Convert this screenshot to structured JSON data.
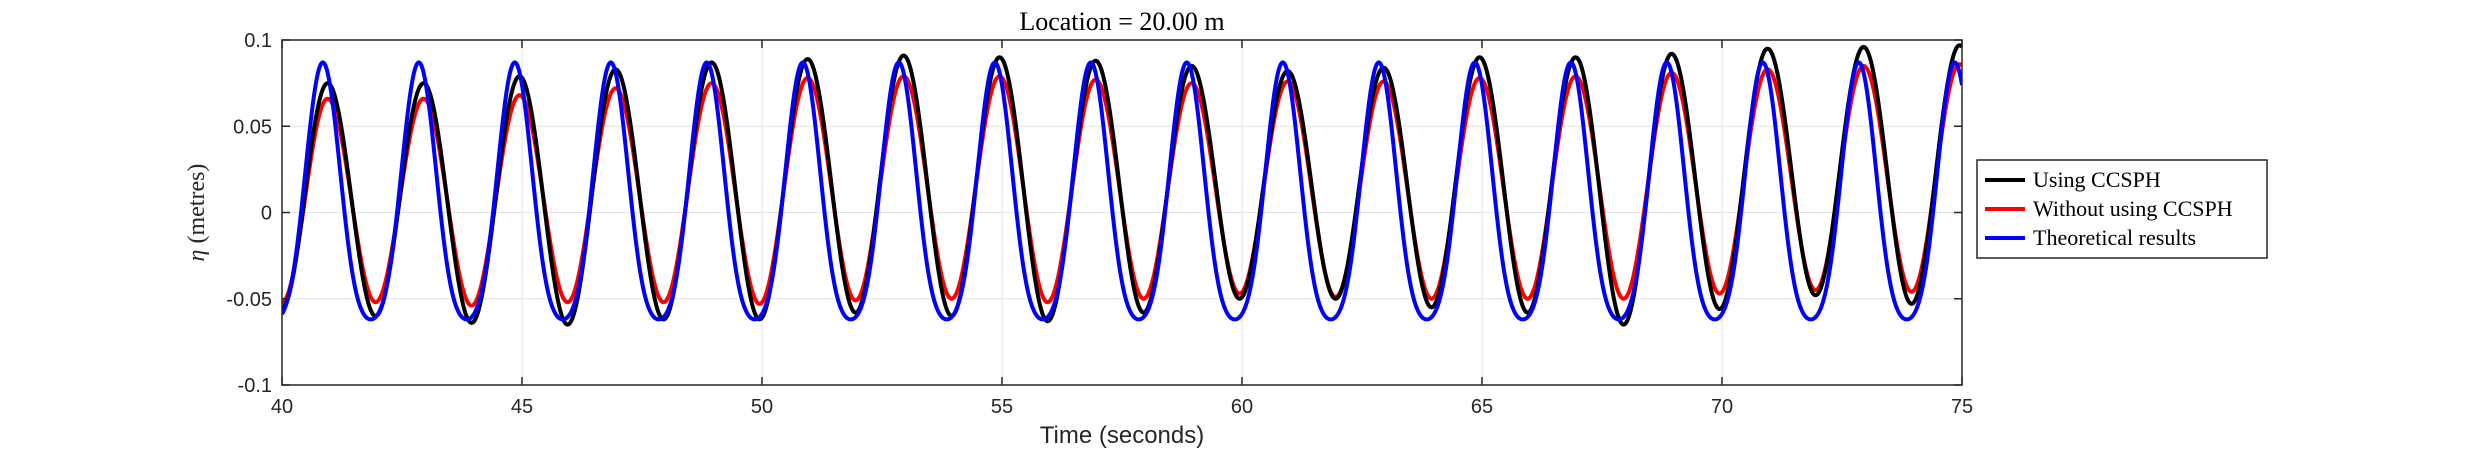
{
  "chart_data": {
    "type": "line",
    "title": "Location = 20.00 m",
    "xlabel": "Time (seconds)",
    "ylabel_symbol": "η",
    "ylabel_unit": "(metres)",
    "xlim": [
      40,
      75
    ],
    "ylim": [
      -0.1,
      0.1
    ],
    "xticks": [
      40,
      45,
      50,
      55,
      60,
      65,
      70,
      75
    ],
    "yticks": [
      -0.1,
      -0.05,
      0,
      0.05,
      0.1
    ],
    "ytick_labels": [
      "-0.1",
      "-0.05",
      "0",
      "0.05",
      "0.1"
    ],
    "xtick_labels": [
      "40",
      "45",
      "50",
      "55",
      "60",
      "65",
      "70",
      "75"
    ],
    "grid": true,
    "legend_position": "right-outside",
    "wave_period": 2.0,
    "series": [
      {
        "name": "Using CCSPH",
        "color": "#000000",
        "peaks": [
          [
            40.95,
            0.075
          ],
          [
            42.95,
            0.075
          ],
          [
            44.95,
            0.079
          ],
          [
            46.95,
            0.083
          ],
          [
            48.95,
            0.087
          ],
          [
            50.95,
            0.089
          ],
          [
            52.95,
            0.091
          ],
          [
            54.95,
            0.09
          ],
          [
            56.95,
            0.088
          ],
          [
            58.95,
            0.085
          ],
          [
            60.95,
            0.082
          ],
          [
            62.95,
            0.084
          ],
          [
            64.95,
            0.09
          ],
          [
            66.95,
            0.09
          ],
          [
            68.95,
            0.092
          ],
          [
            70.95,
            0.095
          ],
          [
            72.95,
            0.096
          ],
          [
            74.95,
            0.097
          ]
        ],
        "troughs": [
          [
            40.0,
            -0.055
          ],
          [
            41.95,
            -0.06
          ],
          [
            43.95,
            -0.064
          ],
          [
            45.95,
            -0.065
          ],
          [
            47.95,
            -0.062
          ],
          [
            49.95,
            -0.062
          ],
          [
            51.95,
            -0.058
          ],
          [
            53.95,
            -0.06
          ],
          [
            55.95,
            -0.063
          ],
          [
            57.95,
            -0.058
          ],
          [
            59.95,
            -0.05
          ],
          [
            61.95,
            -0.05
          ],
          [
            63.95,
            -0.055
          ],
          [
            65.95,
            -0.058
          ],
          [
            67.95,
            -0.065
          ],
          [
            69.95,
            -0.056
          ],
          [
            71.95,
            -0.048
          ],
          [
            73.95,
            -0.053
          ]
        ]
      },
      {
        "name": "Without using CCSPH",
        "color": "#ff0000",
        "peaks": [
          [
            40.95,
            0.066
          ],
          [
            42.95,
            0.066
          ],
          [
            44.95,
            0.068
          ],
          [
            46.95,
            0.072
          ],
          [
            48.95,
            0.075
          ],
          [
            50.95,
            0.078
          ],
          [
            52.95,
            0.079
          ],
          [
            54.95,
            0.079
          ],
          [
            56.95,
            0.077
          ],
          [
            58.95,
            0.075
          ],
          [
            60.95,
            0.076
          ],
          [
            62.95,
            0.076
          ],
          [
            64.95,
            0.078
          ],
          [
            66.95,
            0.079
          ],
          [
            68.95,
            0.081
          ],
          [
            70.95,
            0.083
          ],
          [
            72.95,
            0.085
          ],
          [
            74.95,
            0.086
          ]
        ],
        "troughs": [
          [
            40.0,
            -0.052
          ],
          [
            41.95,
            -0.052
          ],
          [
            43.95,
            -0.054
          ],
          [
            45.95,
            -0.052
          ],
          [
            47.95,
            -0.052
          ],
          [
            49.95,
            -0.053
          ],
          [
            51.95,
            -0.051
          ],
          [
            53.95,
            -0.05
          ],
          [
            55.95,
            -0.052
          ],
          [
            57.95,
            -0.05
          ],
          [
            59.95,
            -0.047
          ],
          [
            61.95,
            -0.049
          ],
          [
            63.95,
            -0.05
          ],
          [
            65.95,
            -0.05
          ],
          [
            67.95,
            -0.05
          ],
          [
            69.95,
            -0.047
          ],
          [
            71.95,
            -0.045
          ],
          [
            73.95,
            -0.046
          ]
        ]
      },
      {
        "name": "Theoretical results",
        "color": "#0000ff",
        "amplitude_crest": 0.087,
        "amplitude_trough": -0.062,
        "crest_time": 40.85
      }
    ]
  }
}
